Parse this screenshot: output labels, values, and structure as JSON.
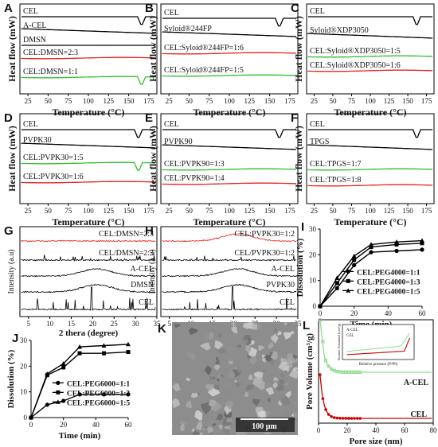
{
  "dsc_panels": [
    {
      "letter": "A",
      "ylabel": "Heat flow (mW)",
      "xlabel": "Temperature (°C)",
      "xticks": [
        25,
        50,
        75,
        100,
        125,
        150,
        175
      ],
      "curves": [
        {
          "label": "CEL",
          "color": "#000000",
          "peak": 166
        },
        {
          "label": "A-CEL",
          "color": "#000000"
        },
        {
          "label": "DMSN",
          "color": "#000000"
        },
        {
          "label": "CEL:DMSN=2:3",
          "color": "#e8231c"
        },
        {
          "label": "CEL:DMSN=1:1",
          "color": "#2fbf2f",
          "peak": 166
        }
      ]
    },
    {
      "letter": "B",
      "ylabel": "Heat flow (mW)",
      "xlabel": "Temperature (°C)",
      "xticks": [
        25,
        50,
        75,
        100,
        125,
        150,
        175
      ],
      "curves": [
        {
          "label": "CEL",
          "color": "#000000",
          "peak": 162
        },
        {
          "label": "Syloid®244FP",
          "color": "#000000"
        },
        {
          "label": "CEL:Syloid®244FP=1:6",
          "color": "#e8231c"
        },
        {
          "label": "CEL:Syloid®244FP=1:5",
          "color": "#2fbf2f"
        }
      ]
    },
    {
      "letter": "C",
      "ylabel": "Heat flow (mW)",
      "xlabel": "Temperature (°C)",
      "xticks": [
        25,
        50,
        75,
        100,
        125,
        150,
        175
      ],
      "curves": [
        {
          "label": "CEL",
          "color": "#000000",
          "peak": 162
        },
        {
          "label": "Syloid®XDP3050",
          "color": "#000000"
        },
        {
          "label": "CEL:Syloid®XDP3050=1:5",
          "color": "#2fbf2f"
        },
        {
          "label": "CEL:Syloid®XDP3050=1:6",
          "color": "#e8231c"
        }
      ]
    },
    {
      "letter": "D",
      "ylabel": "Heat flow (mW)",
      "xlabel": "Temperature (°C)",
      "xticks": [
        25,
        50,
        75,
        100,
        125,
        150,
        175
      ],
      "curves": [
        {
          "label": "CEL",
          "color": "#000000",
          "peak": 162
        },
        {
          "label": "PVPK30",
          "color": "#000000"
        },
        {
          "label": "CEL:PVPK30=1:5",
          "color": "#2fbf2f",
          "peak": 162
        },
        {
          "label": "CEL:PVPK30=1:6",
          "color": "#e8231c"
        }
      ]
    },
    {
      "letter": "E",
      "ylabel": "Heat flow (mW)",
      "xlabel": "Temperature (°C)",
      "xticks": [
        25,
        50,
        75,
        100,
        125,
        150,
        175
      ],
      "curves": [
        {
          "label": "CEL",
          "color": "#000000",
          "peak": 162
        },
        {
          "label": "PVPK90",
          "color": "#000000"
        },
        {
          "label": "CEL:PVPK90=1:3",
          "color": "#2fbf2f"
        },
        {
          "label": "CEL:PVPK90=1:4",
          "color": "#e8231c"
        }
      ]
    },
    {
      "letter": "F",
      "ylabel": "Heat flow (mW)",
      "xlabel": "Temperature (°C)",
      "xticks": [
        25,
        50,
        75,
        100,
        125,
        150,
        175
      ],
      "curves": [
        {
          "label": "CEL",
          "color": "#000000",
          "peak": 162
        },
        {
          "label": "TPGS",
          "color": "#000000"
        },
        {
          "label": "CEL:TPGS=1:7",
          "color": "#2fbf2f"
        },
        {
          "label": "CEL:TPGS=1:8",
          "color": "#e8231c"
        }
      ]
    }
  ],
  "xrd_panels": [
    {
      "letter": "G",
      "ylabel": "Intensity (a.u)",
      "xlabel": "2 thera (degree)",
      "xticks": [
        5,
        10,
        15,
        20,
        25,
        30,
        35
      ],
      "curves": [
        {
          "label": "CEL:DMSN=2:3",
          "color": "#e8231c",
          "type": "flat"
        },
        {
          "label": "CEL/DMSN=2:3",
          "color": "#000000",
          "type": "peaks"
        },
        {
          "label": "A-CEL",
          "color": "#000000",
          "type": "hump"
        },
        {
          "label": "DMSN",
          "color": "#000000",
          "type": "hump"
        },
        {
          "label": "CEL",
          "color": "#000000",
          "type": "peaks"
        }
      ]
    },
    {
      "letter": "H",
      "ylabel": "Intensity (a.u)",
      "xlabel": "2 thera (degree)",
      "xticks": [
        5,
        10,
        15,
        20,
        25,
        30,
        35
      ],
      "curves": [
        {
          "label": "CEL:PVPK30=1:2",
          "color": "#e8231c",
          "type": "hump"
        },
        {
          "label": "CEL/PVPK30=1:2",
          "color": "#000000",
          "type": "peaks"
        },
        {
          "label": "A-CEL",
          "color": "#000000",
          "type": "hump"
        },
        {
          "label": "PVPK30",
          "color": "#000000",
          "type": "hump"
        },
        {
          "label": "CEL",
          "color": "#000000",
          "type": "peaks"
        }
      ]
    }
  ],
  "chart_data": [
    {
      "letter": "I",
      "type": "line",
      "xlabel": "Time (min)",
      "ylabel": "Dissolution (%)",
      "xlim": [
        0,
        60
      ],
      "ylim": [
        0,
        30
      ],
      "xticks": [
        0,
        20,
        40,
        60
      ],
      "yticks": [
        0,
        10,
        20,
        30
      ],
      "x": [
        0,
        10,
        20,
        30,
        45,
        60
      ],
      "series": [
        {
          "name": "CEL:PEG4000=1:1",
          "marker": "circle",
          "values": [
            0,
            7,
            16,
            21,
            21.5,
            22
          ]
        },
        {
          "name": "CEL:PEG4000=1:3",
          "marker": "square",
          "values": [
            0,
            9,
            18,
            23,
            24,
            24.5
          ]
        },
        {
          "name": "CEL:PEG4000=1:5",
          "marker": "triangle",
          "values": [
            0,
            11,
            19.5,
            24,
            25,
            25.5
          ]
        }
      ]
    },
    {
      "letter": "J",
      "type": "line",
      "xlabel": "Time (min)",
      "ylabel": "Dissolution (%)",
      "xlim": [
        0,
        60
      ],
      "ylim": [
        0,
        30
      ],
      "xticks": [
        0,
        20,
        40,
        60
      ],
      "yticks": [
        0,
        10,
        20,
        30
      ],
      "x": [
        0,
        10,
        20,
        30,
        45,
        60
      ],
      "series": [
        {
          "name": "CEL:PEG6000=1:1",
          "marker": "circle",
          "values": [
            0,
            5,
            6.5,
            9,
            9,
            9
          ]
        },
        {
          "name": "CEL:PEG6000=1:3",
          "marker": "square",
          "values": [
            0,
            16.5,
            19.5,
            25,
            25,
            25.5
          ]
        },
        {
          "name": "CEL:PEG6000=1:5",
          "marker": "triangle",
          "values": [
            0,
            17,
            21,
            27.5,
            28,
            28.5
          ]
        }
      ]
    },
    {
      "letter": "L",
      "type": "line",
      "xlabel": "Pore size (nm)",
      "ylabel": "Pore Volume (cm³/g)",
      "xlim": [
        0,
        80
      ],
      "xticks": [
        0,
        20,
        40,
        60,
        80
      ],
      "series": [
        {
          "name": "A-CEL",
          "color": "#8fdc8f"
        },
        {
          "name": "CEL",
          "color": "#cc0000"
        }
      ],
      "inset": {
        "xlabel": "Relative pressure (P/P0)",
        "ylabel": "Volume Adsorbed (cm³/g)",
        "legend": [
          "A-CEL",
          "CEL"
        ]
      }
    }
  ],
  "sem": {
    "letter": "K",
    "scale_bar": "100 μm"
  }
}
